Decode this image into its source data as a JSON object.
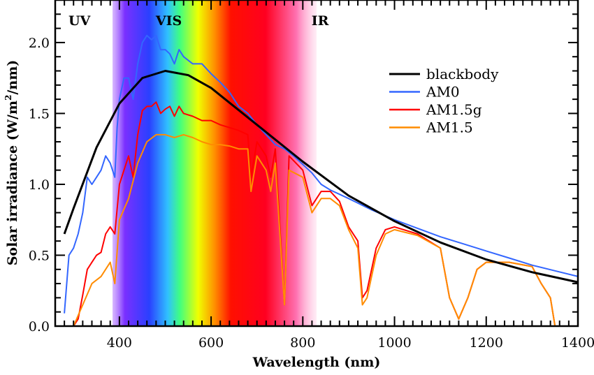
{
  "chart_data": {
    "type": "line",
    "title": "",
    "xlabel": "Wavelength (nm)",
    "ylabel": "Solar irradiance (W/m²/nm)",
    "ylabel_parts": {
      "main": "Solar irradiance (W/m",
      "sup": "2",
      "tail": "/nm)"
    },
    "xlim": [
      260,
      1400
    ],
    "ylim": [
      0,
      2.3
    ],
    "xticks": [
      400,
      600,
      800,
      1000,
      1200,
      1400
    ],
    "xtick_labels": [
      "400",
      "600",
      "800",
      "1000",
      "1200",
      "1400"
    ],
    "yticks": [
      0,
      0.5,
      1.0,
      1.5,
      2.0
    ],
    "ytick_labels": [
      "0.0",
      "0.5",
      "1.0",
      "1.5",
      "2.0"
    ],
    "grid": false,
    "legend_position": "top-right",
    "region_labels": [
      {
        "label": "UV",
        "x": 325
      },
      {
        "label": "VIS",
        "x": 520
      },
      {
        "label": "IR",
        "x": 850
      }
    ],
    "visible_spectrum_band_nm": [
      385,
      830
    ],
    "series": [
      {
        "name": "blackbody",
        "color": "#000000",
        "x": [
          280,
          300,
          350,
          400,
          450,
          500,
          550,
          600,
          700,
          800,
          900,
          1000,
          1100,
          1200,
          1300,
          1400
        ],
        "y": [
          0.65,
          0.83,
          1.26,
          1.57,
          1.75,
          1.8,
          1.77,
          1.68,
          1.42,
          1.16,
          0.92,
          0.74,
          0.59,
          0.47,
          0.38,
          0.31
        ]
      },
      {
        "name": "AM0",
        "color": "#3366ff",
        "x": [
          280,
          290,
          300,
          310,
          320,
          330,
          340,
          350,
          360,
          370,
          380,
          390,
          395,
          400,
          410,
          420,
          430,
          440,
          450,
          460,
          470,
          480,
          490,
          500,
          510,
          520,
          530,
          540,
          560,
          580,
          600,
          620,
          640,
          660,
          680,
          700,
          720,
          740,
          760,
          780,
          800,
          820,
          840,
          860,
          880,
          900,
          950,
          1000,
          1050,
          1100,
          1150,
          1200,
          1250,
          1300,
          1350,
          1400
        ],
        "y": [
          0.09,
          0.5,
          0.55,
          0.65,
          0.8,
          1.05,
          1.0,
          1.05,
          1.1,
          1.2,
          1.15,
          1.05,
          1.4,
          1.6,
          1.75,
          1.75,
          1.6,
          1.85,
          2.0,
          2.05,
          2.02,
          2.05,
          1.95,
          1.95,
          1.92,
          1.85,
          1.95,
          1.9,
          1.85,
          1.85,
          1.78,
          1.72,
          1.65,
          1.55,
          1.5,
          1.42,
          1.35,
          1.28,
          1.25,
          1.2,
          1.14,
          1.08,
          1.0,
          0.96,
          0.93,
          0.9,
          0.82,
          0.75,
          0.69,
          0.63,
          0.58,
          0.53,
          0.48,
          0.43,
          0.39,
          0.35
        ]
      },
      {
        "name": "AM1.5g",
        "color": "#ff0000",
        "x": [
          300,
          310,
          320,
          330,
          340,
          350,
          360,
          370,
          380,
          390,
          400,
          410,
          420,
          430,
          440,
          450,
          460,
          470,
          480,
          490,
          500,
          510,
          520,
          530,
          540,
          560,
          580,
          600,
          620,
          640,
          660,
          680,
          687,
          700,
          720,
          730,
          740,
          760,
          770,
          800,
          820,
          840,
          860,
          880,
          900,
          920,
          930,
          940,
          960,
          980,
          1000,
          1050,
          1100,
          1120,
          1140,
          1160,
          1180,
          1200,
          1250,
          1300,
          1320,
          1340,
          1350
        ],
        "y": [
          0.0,
          0.05,
          0.22,
          0.4,
          0.45,
          0.5,
          0.52,
          0.65,
          0.7,
          0.65,
          1.0,
          1.1,
          1.2,
          1.05,
          1.35,
          1.52,
          1.55,
          1.55,
          1.58,
          1.5,
          1.53,
          1.55,
          1.48,
          1.55,
          1.5,
          1.48,
          1.45,
          1.45,
          1.42,
          1.4,
          1.38,
          1.35,
          1.05,
          1.3,
          1.2,
          1.05,
          1.25,
          0.15,
          1.2,
          1.1,
          0.85,
          0.95,
          0.95,
          0.88,
          0.7,
          0.6,
          0.2,
          0.25,
          0.55,
          0.68,
          0.7,
          0.65,
          0.55,
          0.2,
          0.05,
          0.2,
          0.4,
          0.45,
          0.45,
          0.42,
          0.3,
          0.2,
          0.0
        ]
      },
      {
        "name": "AM1.5",
        "color": "#ff8c00",
        "x": [
          300,
          320,
          340,
          360,
          380,
          390,
          400,
          420,
          440,
          460,
          480,
          500,
          520,
          540,
          560,
          580,
          600,
          620,
          640,
          660,
          680,
          687,
          700,
          720,
          730,
          740,
          760,
          770,
          800,
          820,
          840,
          860,
          880,
          900,
          920,
          930,
          940,
          960,
          980,
          1000,
          1050,
          1100,
          1120,
          1140,
          1160,
          1180,
          1200,
          1250,
          1300,
          1320,
          1340,
          1350
        ],
        "y": [
          0.0,
          0.15,
          0.3,
          0.35,
          0.45,
          0.3,
          0.75,
          0.9,
          1.15,
          1.3,
          1.35,
          1.35,
          1.33,
          1.35,
          1.33,
          1.3,
          1.28,
          1.28,
          1.27,
          1.25,
          1.25,
          0.95,
          1.2,
          1.1,
          0.95,
          1.15,
          0.15,
          1.1,
          1.05,
          0.8,
          0.9,
          0.9,
          0.85,
          0.68,
          0.55,
          0.15,
          0.2,
          0.5,
          0.65,
          0.68,
          0.64,
          0.55,
          0.2,
          0.05,
          0.2,
          0.4,
          0.45,
          0.45,
          0.42,
          0.3,
          0.2,
          0.0
        ]
      }
    ]
  }
}
